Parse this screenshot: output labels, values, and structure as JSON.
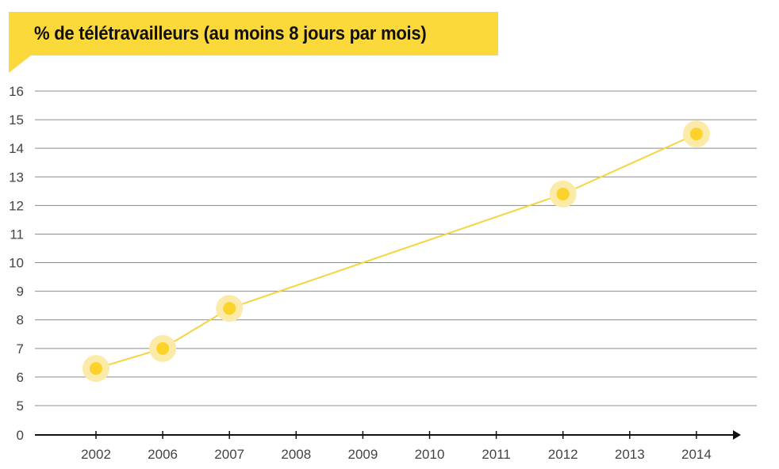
{
  "chart_data": {
    "type": "line",
    "title": "% de télétravailleurs (au moins 8 jours par mois)",
    "categories": [
      "2002",
      "2006",
      "2007",
      "2008",
      "2009",
      "2010",
      "2011",
      "2012",
      "2013",
      "2014"
    ],
    "yticks": [
      "0",
      "5",
      "6",
      "7",
      "8",
      "9",
      "10",
      "11",
      "12",
      "13",
      "14",
      "15",
      "16"
    ],
    "series": [
      {
        "points": [
          {
            "x": "2002",
            "y": 6.3
          },
          {
            "x": "2006",
            "y": 7.0
          },
          {
            "x": "2007",
            "y": 8.4
          },
          {
            "x": "2012",
            "y": 12.4
          },
          {
            "x": "2014",
            "y": 14.5
          }
        ]
      }
    ],
    "y_axis_break": true,
    "grid": true,
    "colors": {
      "accent": "#fcd93a",
      "line": "#f5d53f",
      "marker_halo": "#fbeaa8",
      "marker_core": "#fcd32b",
      "grid": "#8c8c8c",
      "axis": "#111111"
    }
  }
}
